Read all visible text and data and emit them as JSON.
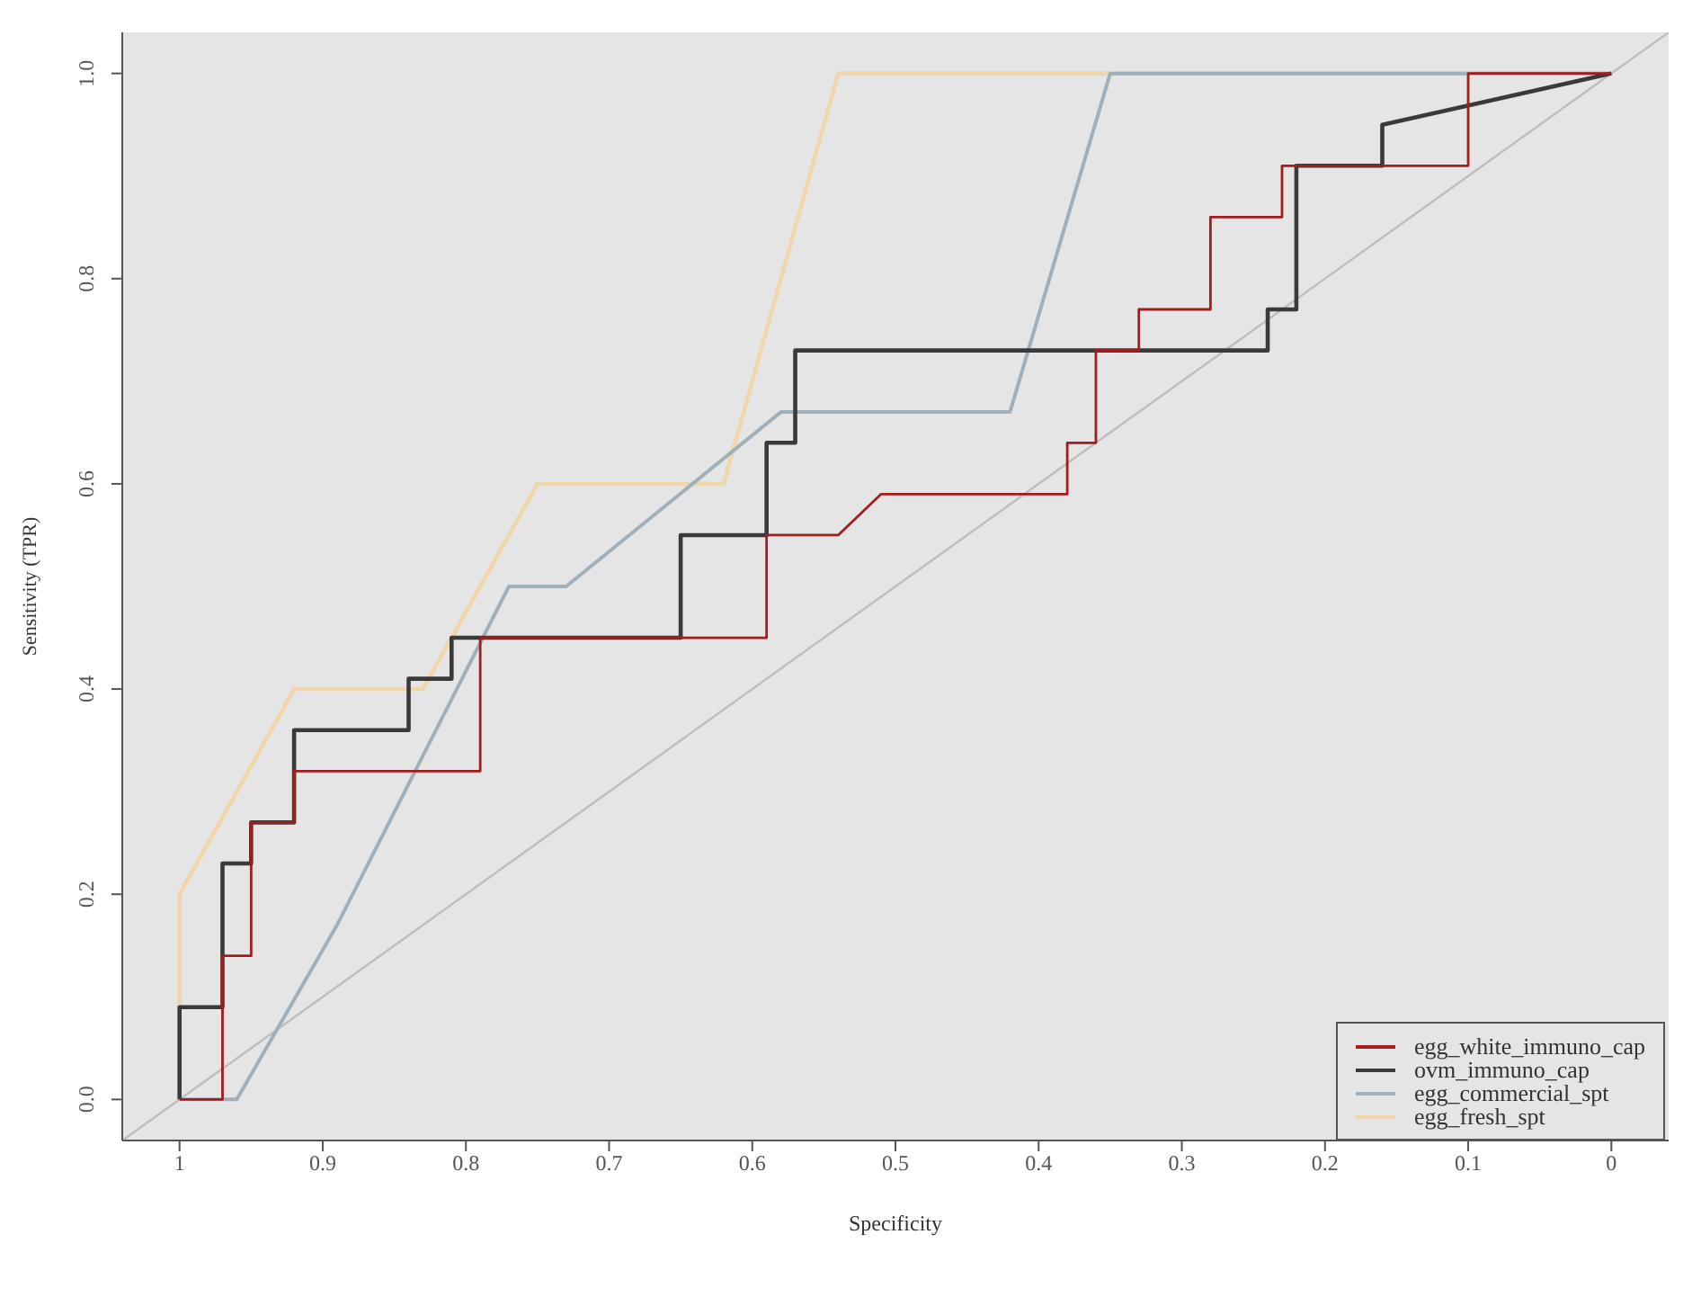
{
  "chart_data": {
    "type": "line",
    "xlabel": "Specificity",
    "ylabel": "Sensitivity (TPR)",
    "xlim": [
      1.04,
      -0.04
    ],
    "ylim": [
      -0.04,
      1.04
    ],
    "xticks": [
      1,
      0.9,
      0.8,
      0.7,
      0.6,
      0.5,
      0.4,
      0.3,
      0.2,
      0.1,
      0
    ],
    "yticks": [
      {
        "value": 0,
        "label": "0.0"
      },
      {
        "value": 0.2,
        "label": "0.2"
      },
      {
        "value": 0.4,
        "label": "0.4"
      },
      {
        "value": 0.6,
        "label": "0.6"
      },
      {
        "value": 0.8,
        "label": "0.8"
      },
      {
        "value": 1,
        "label": "1.0"
      }
    ],
    "grid": false,
    "legend": "bottom right",
    "marker": "none",
    "line_style": "solid",
    "series": [
      {
        "color": "#bdbdbd",
        "x": [
          1.04,
          -0.04
        ],
        "values": [
          -0.04,
          1.04
        ]
      },
      {
        "name": "egg_fresh_spt",
        "color": "#f0d6a8",
        "x": [
          1,
          1,
          0.92,
          0.83,
          0.75,
          0.62,
          0.54,
          0
        ],
        "values": [
          0,
          0.2,
          0.4,
          0.4,
          0.6,
          0.6,
          1,
          1
        ]
      },
      {
        "name": "egg_commercial_spt",
        "color": "#9fb0bc",
        "x": [
          1,
          0.96,
          0.89,
          0.77,
          0.73,
          0.58,
          0.42,
          0.35,
          0
        ],
        "values": [
          0,
          0,
          0.17,
          0.5,
          0.5,
          0.67,
          0.67,
          1,
          1
        ]
      },
      {
        "name": "ovm_immuno_cap",
        "color": "#3a3a3a",
        "x": [
          1,
          1,
          0.97,
          0.97,
          0.95,
          0.95,
          0.92,
          0.92,
          0.84,
          0.84,
          0.81,
          0.81,
          0.65,
          0.65,
          0.59,
          0.59,
          0.57,
          0.57,
          0.24,
          0.24,
          0.22,
          0.22,
          0.16,
          0.16,
          0
        ],
        "values": [
          0,
          0.09,
          0.09,
          0.23,
          0.23,
          0.27,
          0.27,
          0.36,
          0.36,
          0.41,
          0.41,
          0.45,
          0.45,
          0.55,
          0.55,
          0.64,
          0.64,
          0.73,
          0.73,
          0.77,
          0.77,
          0.91,
          0.91,
          0.95,
          1
        ]
      },
      {
        "name": "egg_white_immuno_cap",
        "color": "#a41c1c",
        "x": [
          1,
          0.97,
          0.97,
          0.95,
          0.95,
          0.92,
          0.92,
          0.79,
          0.79,
          0.59,
          0.59,
          0.54,
          0.51,
          0.38,
          0.38,
          0.36,
          0.36,
          0.33,
          0.33,
          0.28,
          0.28,
          0.23,
          0.23,
          0.1,
          0.1,
          0
        ],
        "values": [
          0,
          0,
          0.14,
          0.14,
          0.27,
          0.27,
          0.32,
          0.32,
          0.45,
          0.45,
          0.55,
          0.55,
          0.59,
          0.59,
          0.64,
          0.64,
          0.73,
          0.73,
          0.77,
          0.77,
          0.86,
          0.86,
          0.91,
          0.91,
          1,
          1
        ]
      }
    ]
  }
}
